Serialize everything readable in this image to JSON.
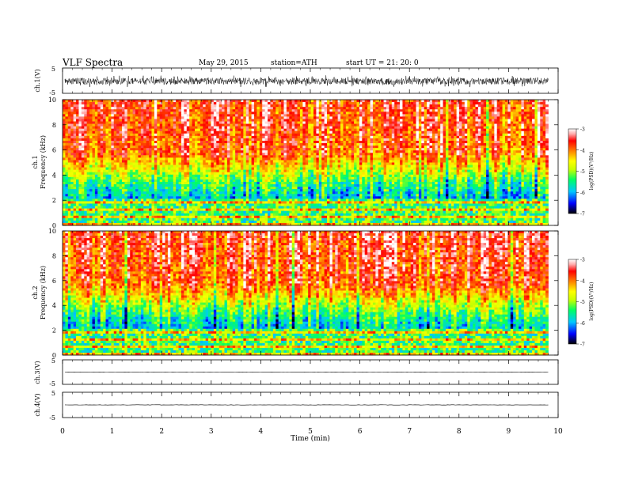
{
  "header": {
    "title": "VLF  Spectra",
    "date": "May 29, 2015",
    "station": "station=ATH",
    "start": "start  UT  =   21: 20: 0"
  },
  "chart_data": [
    {
      "type": "line",
      "panel": "ch1-waveform",
      "ylabel": "ch.1(V)",
      "ylim": [
        -5,
        5
      ],
      "y_ticks": [
        "5",
        "-5"
      ],
      "description_values": {
        "mean": -0.2,
        "amplitude": 1.3
      }
    },
    {
      "type": "heatmap",
      "panel": "ch1-spectrogram",
      "ylabel_top": "ch.1",
      "ylabel": "Frequency  (kHz)",
      "ylim": [
        0,
        10
      ],
      "y_ticks": [
        "0",
        "2",
        "4",
        "6",
        "8",
        "10"
      ],
      "colorbar": {
        "label": "log(PSD)(V²/Hz)",
        "range": [
          -7,
          -3
        ],
        "ticks": [
          "-3",
          "-4",
          "-5",
          "-6",
          "-7"
        ],
        "colors": [
          "#000000",
          "#0000ff",
          "#00c8ff",
          "#00ff64",
          "#c8ff00",
          "#ffff00",
          "#ff8000",
          "#ff0000",
          "#ffaaaa",
          "#ffffff"
        ]
      }
    },
    {
      "type": "heatmap",
      "panel": "ch2-spectrogram",
      "ylabel_top": "ch.2",
      "ylabel": "Frequency  (kHz)",
      "ylim": [
        0,
        10
      ],
      "y_ticks": [
        "0",
        "2",
        "4",
        "6",
        "8",
        "10"
      ],
      "colorbar": {
        "label": "log(PSD)(V²/Hz)",
        "range": [
          -7,
          -3
        ],
        "ticks": [
          "-3",
          "-4",
          "-5",
          "-6",
          "-7"
        ]
      }
    },
    {
      "type": "line",
      "panel": "ch3-waveform",
      "ylabel": "ch.3(V)",
      "ylim": [
        -5,
        5
      ],
      "y_ticks": [
        "5",
        "-5"
      ],
      "description_values": {
        "mean": 0.0
      }
    },
    {
      "type": "line",
      "panel": "ch4-waveform",
      "ylabel": "ch.4(V)",
      "ylim": [
        -5,
        5
      ],
      "y_ticks": [
        "5",
        "-5"
      ],
      "description_values": {
        "mean": 0.0
      }
    }
  ],
  "x_axis": {
    "xlabel": "Time  (min)",
    "xlim": [
      0,
      10
    ],
    "data_end": 9.8,
    "ticks": [
      "0",
      "1",
      "2",
      "3",
      "4",
      "5",
      "6",
      "7",
      "8",
      "9",
      "10"
    ]
  }
}
